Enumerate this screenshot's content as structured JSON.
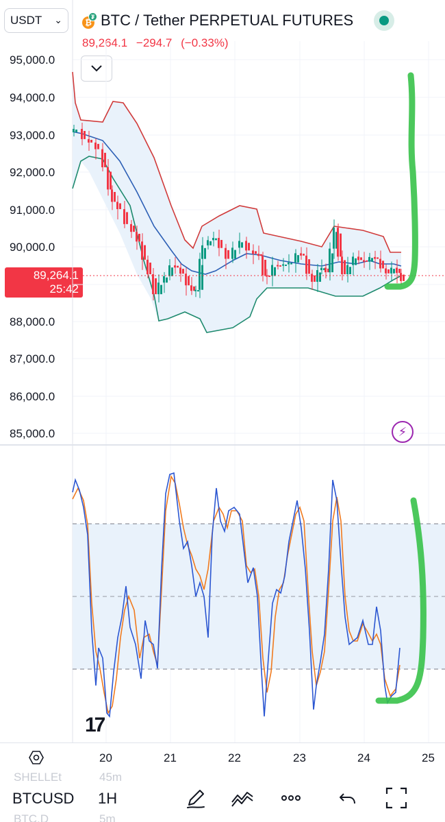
{
  "header": {
    "currency": "USDT",
    "symbol_title": "BTC / Tether PERPETUAL FUTURES",
    "last_price": "89,264.1",
    "change": "−294.7",
    "change_pct": "(−0.33%)",
    "market_status": "live"
  },
  "price_marker": {
    "price": "89,264.1",
    "countdown": "25:42"
  },
  "y_axis": [
    "95,000.0",
    "94,000.0",
    "93,000.0",
    "92,000.0",
    "91,000.0",
    "90,000.0",
    "88,000.0",
    "87,000.0",
    "86,000.0",
    "85,000.0"
  ],
  "x_axis": [
    "20",
    "21",
    "22",
    "23",
    "24",
    "25"
  ],
  "toolbar": {
    "symbol": "BTCUSD",
    "interval": "1H",
    "ghost_top_left": "SHELLEt",
    "ghost_top_right": "45m",
    "ghost_bottom_left": "BTC.D",
    "ghost_bottom_right": "5m"
  },
  "colors": {
    "bull": "#089981",
    "bear": "#f23645",
    "bb_upper": "#d03a3a",
    "bb_basis": "#2c5fb5",
    "bb_lower": "#1e8a6e",
    "bb_fill": "#eaf3fc",
    "stoch_k": "#2b56d1",
    "stoch_d": "#f07a1e",
    "annotation": "#39c24a"
  },
  "icons": [
    "chevron-down-icon",
    "bitcoin-tether-logo",
    "settings-hexagon-icon",
    "tradingview-logo",
    "lightning-icon",
    "pencil-icon",
    "indicators-icon",
    "more-icon",
    "undo-icon",
    "fullscreen-icon"
  ]
}
